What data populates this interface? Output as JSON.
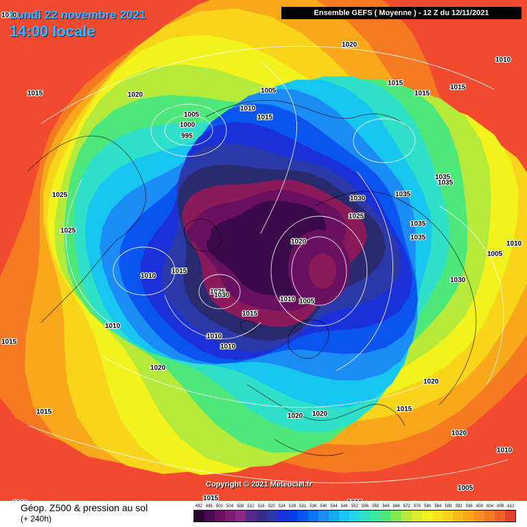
{
  "header": {
    "date_label": "Lundi 22 novembre 2021",
    "time_label": "14:00 locale",
    "run_label": "Ensemble GEFS  ( Moyenne )  -  12 Z du 12/11/2021"
  },
  "footer": {
    "variable_title": "Géop. Z500 & pression au sol",
    "lead_time": "(+ 240h)",
    "copyright": "Copyright © 2021 Meteociel.fr"
  },
  "colors": {
    "background_warm": "#f24a2e",
    "land_coast": "#000000",
    "isobars": "#ffffff"
  },
  "contour_bands": [
    {
      "level": 492,
      "color": "#3a0a4a"
    },
    {
      "level": 500,
      "color": "#6a1060"
    },
    {
      "level": 508,
      "color": "#8a1a5a"
    },
    {
      "level": 516,
      "color": "#2a2a6e"
    },
    {
      "level": 524,
      "color": "#2b3aa8"
    },
    {
      "level": 532,
      "color": "#1a30d8"
    },
    {
      "level": 540,
      "color": "#0a55f0"
    },
    {
      "level": 548,
      "color": "#1b8bf5"
    },
    {
      "level": 556,
      "color": "#17c6f0"
    },
    {
      "level": 564,
      "color": "#2fe0c8"
    },
    {
      "level": 572,
      "color": "#4ee87a"
    },
    {
      "level": 580,
      "color": "#b6ea3a"
    },
    {
      "level": 588,
      "color": "#f2f21c"
    },
    {
      "level": 596,
      "color": "#f8d41a"
    },
    {
      "level": 604,
      "color": "#f8a81a"
    },
    {
      "level": 612,
      "color": "#f57a22"
    }
  ],
  "scale": {
    "labels": [
      "492",
      "496",
      "500",
      "504",
      "508",
      "512",
      "516",
      "520",
      "524",
      "528",
      "532",
      "536",
      "540",
      "544",
      "548",
      "552",
      "556",
      "560",
      "564",
      "568",
      "572",
      "576",
      "580",
      "584",
      "588",
      "592",
      "596",
      "600",
      "604",
      "608",
      "612"
    ],
    "colors": [
      "#2a0530",
      "#4a0a50",
      "#6a1060",
      "#7e1a72",
      "#8a2a86",
      "#5a2a8a",
      "#3a2a8c",
      "#2b3aa8",
      "#1a30d8",
      "#0a3af0",
      "#0a55f0",
      "#0a75f5",
      "#1b8bf5",
      "#14aaf0",
      "#17c6f0",
      "#22d8e0",
      "#2fe0c8",
      "#3ce8a0",
      "#4ee87a",
      "#80ea50",
      "#b6ea3a",
      "#dcee2a",
      "#f2f21c",
      "#f8e41a",
      "#f8d41a",
      "#f8bc1a",
      "#f8a81a",
      "#f6901e",
      "#f57a22",
      "#f06028",
      "#e8402e"
    ]
  },
  "pressure_labels": [
    {
      "text": "1010",
      "region": "top-left-corner"
    },
    {
      "text": "1015",
      "region": "northwest-pacific"
    },
    {
      "text": "1020",
      "region": "bering"
    },
    {
      "text": "1020",
      "region": "arctic-top"
    },
    {
      "text": "1005",
      "region": "siberia-north"
    },
    {
      "text": "1005",
      "region": "east-siberia-low"
    },
    {
      "text": "1000",
      "region": "east-siberia-low"
    },
    {
      "text": "995",
      "region": "east-siberia-low"
    },
    {
      "text": "1010",
      "region": "east-siberia"
    },
    {
      "text": "1015",
      "region": "east-siberia"
    },
    {
      "text": "1015",
      "region": "alaska-top"
    },
    {
      "text": "1015",
      "region": "alaska-top"
    },
    {
      "text": "1015",
      "region": "top-right"
    },
    {
      "text": "1010",
      "region": "top-right-corner"
    },
    {
      "text": "1025",
      "region": "siberia-west"
    },
    {
      "text": "1025",
      "region": "siberia-west"
    },
    {
      "text": "1030",
      "region": "arctic"
    },
    {
      "text": "1025",
      "region": "arctic"
    },
    {
      "text": "1035",
      "region": "canada"
    },
    {
      "text": "1035",
      "region": "canada"
    },
    {
      "text": "1035",
      "region": "canada"
    },
    {
      "text": "1035",
      "region": "canada"
    },
    {
      "text": "1035",
      "region": "canada"
    },
    {
      "text": "1005",
      "region": "atlantic-right"
    },
    {
      "text": "1010",
      "region": "atlantic-right"
    },
    {
      "text": "1030",
      "region": "canada-east"
    },
    {
      "text": "1020",
      "region": "north-atlantic"
    },
    {
      "text": "1010",
      "region": "greenland-low"
    },
    {
      "text": "1005",
      "region": "greenland-low"
    },
    {
      "text": "1010",
      "region": "asia-center"
    },
    {
      "text": "1015",
      "region": "asia-center"
    },
    {
      "text": "1035",
      "region": "central-asia"
    },
    {
      "text": "1030",
      "region": "central-asia"
    },
    {
      "text": "1015",
      "region": "central-asia"
    },
    {
      "text": "1010",
      "region": "asia-south"
    },
    {
      "text": "1010",
      "region": "asia-south"
    },
    {
      "text": "1010",
      "region": "asia-south"
    },
    {
      "text": "1015",
      "region": "left-edge"
    },
    {
      "text": "1020",
      "region": "south-asia"
    },
    {
      "text": "1015",
      "region": "india"
    },
    {
      "text": "1020",
      "region": "europe"
    },
    {
      "text": "1020",
      "region": "europe"
    },
    {
      "text": "1020",
      "region": "north-atlantic-south"
    },
    {
      "text": "1015",
      "region": "atlantic-south"
    },
    {
      "text": "1020",
      "region": "atlantic-south"
    },
    {
      "text": "1010",
      "region": "atlantic-south"
    },
    {
      "text": "1005",
      "region": "atlantic-south"
    },
    {
      "text": "1010",
      "region": "bottom-left-corner"
    },
    {
      "text": "1015",
      "region": "africa"
    },
    {
      "text": "1010",
      "region": "africa"
    }
  ]
}
